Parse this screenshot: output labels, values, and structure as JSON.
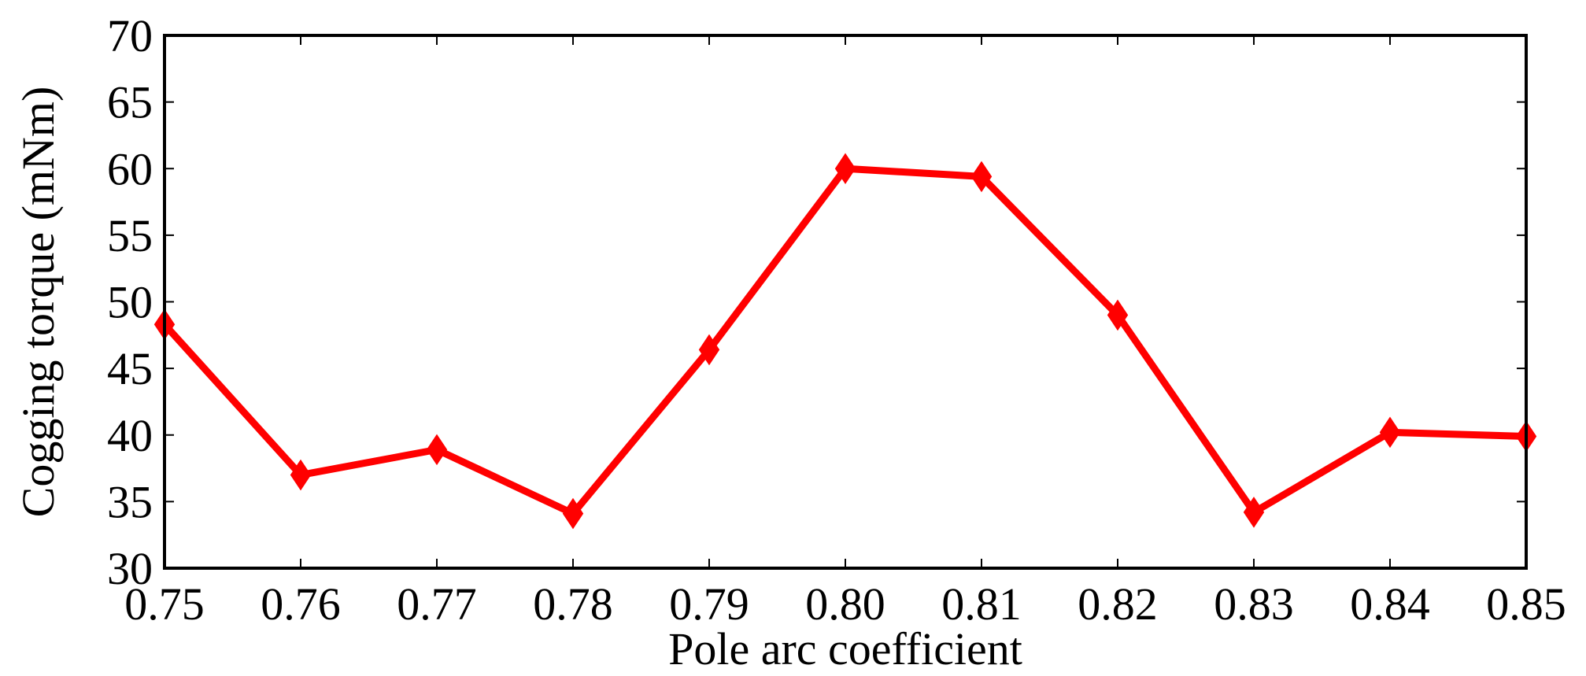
{
  "chart_data": {
    "type": "line",
    "title": "",
    "xlabel": "Pole arc coefficient",
    "ylabel": "Cogging torque (mNm)",
    "xlim": [
      0.75,
      0.85
    ],
    "ylim": [
      30,
      70
    ],
    "xticks": [
      "0.75",
      "0.76",
      "0.77",
      "0.78",
      "0.79",
      "0.80",
      "0.81",
      "0.82",
      "0.83",
      "0.84",
      "0.85"
    ],
    "yticks": [
      "30",
      "35",
      "40",
      "45",
      "50",
      "55",
      "60",
      "65",
      "70"
    ],
    "grid": false,
    "legend": "none",
    "series": [
      {
        "color": "#ff0000",
        "marker": "diamond",
        "x": [
          0.75,
          0.76,
          0.77,
          0.78,
          0.79,
          0.8,
          0.81,
          0.82,
          0.83,
          0.84,
          0.85
        ],
        "y": [
          48.3,
          37.0,
          38.9,
          34.1,
          46.4,
          60.0,
          59.4,
          49.0,
          34.2,
          40.2,
          39.9
        ]
      }
    ]
  }
}
